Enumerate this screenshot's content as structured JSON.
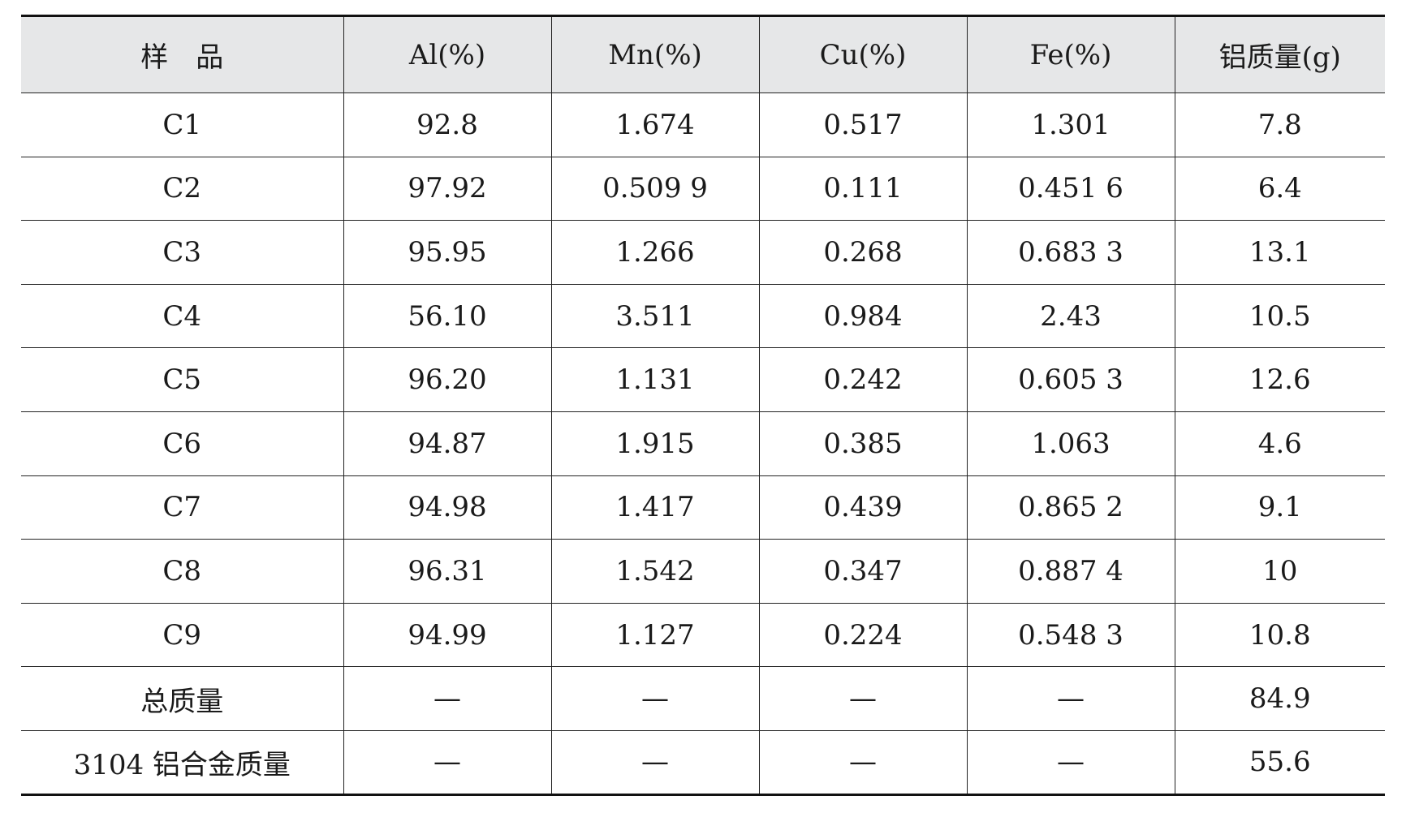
{
  "table": {
    "headers": [
      "样　品",
      "Al(%)",
      "Mn(%)",
      "Cu(%)",
      "Fe(%)",
      "铝质量(g)"
    ],
    "rows": [
      [
        "C1",
        "92.8",
        "1.674",
        "0.517",
        "1.301",
        "7.8"
      ],
      [
        "C2",
        "97.92",
        "0.509 9",
        "0.111",
        "0.451 6",
        "6.4"
      ],
      [
        "C3",
        "95.95",
        "1.266",
        "0.268",
        "0.683 3",
        "13.1"
      ],
      [
        "C4",
        "56.10",
        "3.511",
        "0.984",
        "2.43",
        "10.5"
      ],
      [
        "C5",
        "96.20",
        "1.131",
        "0.242",
        "0.605 3",
        "12.6"
      ],
      [
        "C6",
        "94.87",
        "1.915",
        "0.385",
        "1.063",
        "4.6"
      ],
      [
        "C7",
        "94.98",
        "1.417",
        "0.439",
        "0.865 2",
        "9.1"
      ],
      [
        "C8",
        "96.31",
        "1.542",
        "0.347",
        "0.887 4",
        "10"
      ],
      [
        "C9",
        "94.99",
        "1.127",
        "0.224",
        "0.548 3",
        "10.8"
      ],
      [
        "总质量",
        "—",
        "—",
        "—",
        "—",
        "84.9"
      ],
      [
        "3104 铝合金质量",
        "—",
        "—",
        "—",
        "—",
        "55.6"
      ]
    ]
  },
  "colors": {
    "header_background": "#e6e7e8",
    "rule": "#222222"
  }
}
